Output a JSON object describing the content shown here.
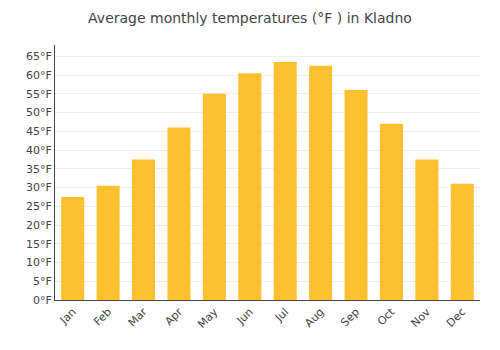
{
  "chart_data": {
    "type": "bar",
    "title": "Average monthly temperatures (°F ) in Kladno",
    "categories": [
      "Jan",
      "Feb",
      "Mar",
      "Apr",
      "May",
      "Jun",
      "Jul",
      "Aug",
      "Sep",
      "Oct",
      "Nov",
      "Dec"
    ],
    "values": [
      27.5,
      30.5,
      37.5,
      46.0,
      55.0,
      60.5,
      63.5,
      62.5,
      56.0,
      47.0,
      37.5,
      31.0
    ],
    "color": "#FFC030",
    "ylim": [
      0,
      68
    ],
    "yticks": [
      {
        "value": 0,
        "label": "0°F"
      },
      {
        "value": 5,
        "label": "5°F"
      },
      {
        "value": 10,
        "label": "10°F"
      },
      {
        "value": 15,
        "label": "15°F"
      },
      {
        "value": 20,
        "label": "20°F"
      },
      {
        "value": 25,
        "label": "25°F"
      },
      {
        "value": 30,
        "label": "30°F"
      },
      {
        "value": 35,
        "label": "35°F"
      },
      {
        "value": 40,
        "label": "40°F"
      },
      {
        "value": 45,
        "label": "45°F"
      },
      {
        "value": 50,
        "label": "50°F"
      },
      {
        "value": 55,
        "label": "55°F"
      },
      {
        "value": 60,
        "label": "60°F"
      },
      {
        "value": 65,
        "label": "65°F"
      }
    ],
    "grid": true
  }
}
